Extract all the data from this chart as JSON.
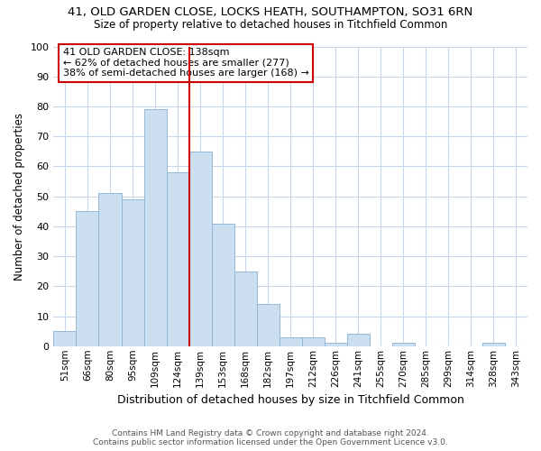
{
  "title1": "41, OLD GARDEN CLOSE, LOCKS HEATH, SOUTHAMPTON, SO31 6RN",
  "title2": "Size of property relative to detached houses in Titchfield Common",
  "xlabel": "Distribution of detached houses by size in Titchfield Common",
  "ylabel": "Number of detached properties",
  "categories": [
    "51sqm",
    "66sqm",
    "80sqm",
    "95sqm",
    "109sqm",
    "124sqm",
    "139sqm",
    "153sqm",
    "168sqm",
    "182sqm",
    "197sqm",
    "212sqm",
    "226sqm",
    "241sqm",
    "255sqm",
    "270sqm",
    "285sqm",
    "299sqm",
    "314sqm",
    "328sqm",
    "343sqm"
  ],
  "values": [
    5,
    45,
    51,
    49,
    79,
    58,
    65,
    41,
    25,
    14,
    3,
    3,
    1,
    4,
    0,
    1,
    0,
    0,
    0,
    1,
    0
  ],
  "bar_color": "#ccdff0",
  "bar_edge_color": "#93b8d8",
  "ref_line_x": 6.0,
  "ref_line_color": "#cc0000",
  "annotation_title": "41 OLD GARDEN CLOSE: 138sqm",
  "annotation_line1": "← 62% of detached houses are smaller (277)",
  "annotation_line2": "38% of semi-detached houses are larger (168) →",
  "annotation_box_color": "#ffffff",
  "annotation_box_edge": "#cc0000",
  "ylim": [
    0,
    100
  ],
  "yticks": [
    0,
    10,
    20,
    30,
    40,
    50,
    60,
    70,
    80,
    90,
    100
  ],
  "footer1": "Contains HM Land Registry data © Crown copyright and database right 2024.",
  "footer2": "Contains public sector information licensed under the Open Government Licence v3.0.",
  "background_color": "#ffffff",
  "grid_color": "#c8d8ea"
}
